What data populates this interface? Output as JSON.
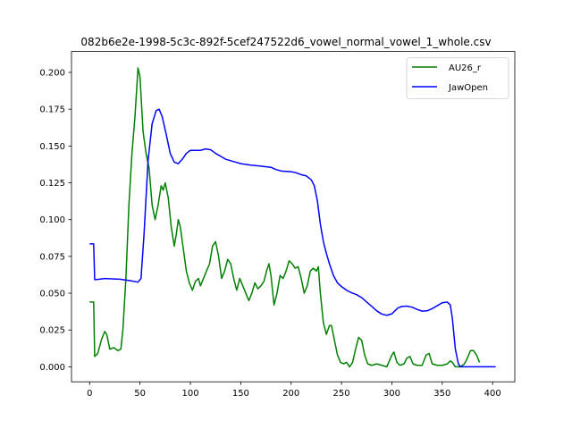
{
  "chart_data": {
    "type": "line",
    "title": "082b6e2e-1998-5c3c-892f-5cef247522d6_vowel_normal_vowel_1_whole.csv",
    "xlabel": "",
    "ylabel": "",
    "xlim": [
      -18,
      422
    ],
    "ylim": [
      -0.0102,
      0.2142
    ],
    "xticks": [
      0,
      50,
      100,
      150,
      200,
      250,
      300,
      350,
      400
    ],
    "yticks": [
      0.0,
      0.025,
      0.05,
      0.075,
      0.1,
      0.125,
      0.15,
      0.175,
      0.2
    ],
    "xtick_labels": [
      "0",
      "50",
      "100",
      "150",
      "200",
      "250",
      "300",
      "350",
      "400"
    ],
    "ytick_labels": [
      "0.000",
      "0.025",
      "0.050",
      "0.075",
      "0.100",
      "0.125",
      "0.150",
      "0.175",
      "0.200"
    ],
    "grid": false,
    "legend_position": "top-right",
    "series": [
      {
        "name": "AU26_r",
        "color": "#008000",
        "points": [
          [
            0,
            0.044
          ],
          [
            4,
            0.044
          ],
          [
            5,
            0.007
          ],
          [
            8,
            0.009
          ],
          [
            12,
            0.019
          ],
          [
            15,
            0.024
          ],
          [
            17,
            0.022
          ],
          [
            20,
            0.012
          ],
          [
            24,
            0.013
          ],
          [
            28,
            0.011
          ],
          [
            31,
            0.012
          ],
          [
            33,
            0.025
          ],
          [
            36,
            0.06
          ],
          [
            39,
            0.11
          ],
          [
            42,
            0.145
          ],
          [
            45,
            0.17
          ],
          [
            48,
            0.203
          ],
          [
            50,
            0.197
          ],
          [
            53,
            0.16
          ],
          [
            56,
            0.145
          ],
          [
            59,
            0.135
          ],
          [
            62,
            0.11
          ],
          [
            65,
            0.1
          ],
          [
            68,
            0.11
          ],
          [
            71,
            0.123
          ],
          [
            73,
            0.12
          ],
          [
            75,
            0.125
          ],
          [
            78,
            0.115
          ],
          [
            81,
            0.095
          ],
          [
            84,
            0.082
          ],
          [
            86,
            0.09
          ],
          [
            88,
            0.1
          ],
          [
            90,
            0.095
          ],
          [
            93,
            0.08
          ],
          [
            96,
            0.065
          ],
          [
            99,
            0.057
          ],
          [
            102,
            0.052
          ],
          [
            105,
            0.058
          ],
          [
            108,
            0.06
          ],
          [
            110,
            0.055
          ],
          [
            113,
            0.06
          ],
          [
            116,
            0.065
          ],
          [
            119,
            0.07
          ],
          [
            122,
            0.082
          ],
          [
            125,
            0.085
          ],
          [
            128,
            0.075
          ],
          [
            131,
            0.06
          ],
          [
            134,
            0.065
          ],
          [
            137,
            0.073
          ],
          [
            140,
            0.07
          ],
          [
            143,
            0.06
          ],
          [
            146,
            0.052
          ],
          [
            149,
            0.06
          ],
          [
            152,
            0.055
          ],
          [
            155,
            0.05
          ],
          [
            158,
            0.045
          ],
          [
            161,
            0.05
          ],
          [
            164,
            0.057
          ],
          [
            167,
            0.053
          ],
          [
            170,
            0.055
          ],
          [
            173,
            0.058
          ],
          [
            176,
            0.066
          ],
          [
            178,
            0.07
          ],
          [
            180,
            0.062
          ],
          [
            183,
            0.042
          ],
          [
            186,
            0.05
          ],
          [
            189,
            0.062
          ],
          [
            192,
            0.06
          ],
          [
            195,
            0.065
          ],
          [
            198,
            0.072
          ],
          [
            201,
            0.07
          ],
          [
            204,
            0.067
          ],
          [
            207,
            0.068
          ],
          [
            210,
            0.06
          ],
          [
            213,
            0.05
          ],
          [
            216,
            0.055
          ],
          [
            219,
            0.065
          ],
          [
            222,
            0.067
          ],
          [
            225,
            0.065
          ],
          [
            227,
            0.068
          ],
          [
            229,
            0.05
          ],
          [
            232,
            0.03
          ],
          [
            235,
            0.022
          ],
          [
            238,
            0.028
          ],
          [
            240,
            0.028
          ],
          [
            243,
            0.018
          ],
          [
            246,
            0.008
          ],
          [
            249,
            0.003
          ],
          [
            252,
            0.002
          ],
          [
            255,
            0.003
          ],
          [
            258,
            0.0
          ],
          [
            261,
            0.003
          ],
          [
            264,
            0.012
          ],
          [
            267,
            0.02
          ],
          [
            270,
            0.018
          ],
          [
            273,
            0.008
          ],
          [
            276,
            0.002
          ],
          [
            280,
            0.001
          ],
          [
            285,
            0.002
          ],
          [
            290,
            0.001
          ],
          [
            295,
            0.0
          ],
          [
            300,
            0.008
          ],
          [
            302,
            0.01
          ],
          [
            305,
            0.003
          ],
          [
            308,
            0.001
          ],
          [
            312,
            0.002
          ],
          [
            315,
            0.006
          ],
          [
            318,
            0.007
          ],
          [
            321,
            0.002
          ],
          [
            325,
            0.001
          ],
          [
            330,
            0.001
          ],
          [
            334,
            0.008
          ],
          [
            337,
            0.009
          ],
          [
            340,
            0.002
          ],
          [
            345,
            0.001
          ],
          [
            350,
            0.001
          ],
          [
            355,
            0.002
          ],
          [
            358,
            0.004
          ],
          [
            360,
            0.003
          ],
          [
            363,
            0.0
          ],
          [
            368,
            0.0
          ],
          [
            372,
            0.002
          ],
          [
            375,
            0.006
          ],
          [
            378,
            0.011
          ],
          [
            381,
            0.011
          ],
          [
            384,
            0.008
          ],
          [
            387,
            0.003
          ]
        ]
      },
      {
        "name": "JawOpen",
        "color": "#0000ff",
        "points": [
          [
            0,
            0.0835
          ],
          [
            4,
            0.0835
          ],
          [
            5,
            0.0592
          ],
          [
            10,
            0.0595
          ],
          [
            15,
            0.06
          ],
          [
            20,
            0.0598
          ],
          [
            30,
            0.0595
          ],
          [
            40,
            0.0585
          ],
          [
            48,
            0.0575
          ],
          [
            51,
            0.06
          ],
          [
            54,
            0.09
          ],
          [
            58,
            0.14
          ],
          [
            62,
            0.165
          ],
          [
            66,
            0.174
          ],
          [
            69,
            0.175
          ],
          [
            72,
            0.17
          ],
          [
            76,
            0.158
          ],
          [
            80,
            0.145
          ],
          [
            84,
            0.139
          ],
          [
            88,
            0.138
          ],
          [
            92,
            0.141
          ],
          [
            96,
            0.145
          ],
          [
            100,
            0.147
          ],
          [
            105,
            0.147
          ],
          [
            110,
            0.147
          ],
          [
            115,
            0.148
          ],
          [
            120,
            0.1475
          ],
          [
            125,
            0.145
          ],
          [
            130,
            0.143
          ],
          [
            135,
            0.141
          ],
          [
            140,
            0.14
          ],
          [
            145,
            0.139
          ],
          [
            150,
            0.138
          ],
          [
            160,
            0.137
          ],
          [
            170,
            0.1363
          ],
          [
            180,
            0.1355
          ],
          [
            185,
            0.134
          ],
          [
            190,
            0.133
          ],
          [
            200,
            0.1325
          ],
          [
            205,
            0.1318
          ],
          [
            210,
            0.1305
          ],
          [
            215,
            0.1297
          ],
          [
            220,
            0.127
          ],
          [
            223,
            0.123
          ],
          [
            226,
            0.113
          ],
          [
            229,
            0.097
          ],
          [
            232,
            0.085
          ],
          [
            235,
            0.077
          ],
          [
            238,
            0.07
          ],
          [
            242,
            0.062
          ],
          [
            246,
            0.057
          ],
          [
            250,
            0.0545
          ],
          [
            255,
            0.052
          ],
          [
            260,
            0.0503
          ],
          [
            265,
            0.049
          ],
          [
            270,
            0.047
          ],
          [
            275,
            0.044
          ],
          [
            280,
            0.041
          ],
          [
            285,
            0.038
          ],
          [
            290,
            0.0358
          ],
          [
            295,
            0.035
          ],
          [
            300,
            0.036
          ],
          [
            303,
            0.038
          ],
          [
            306,
            0.04
          ],
          [
            310,
            0.041
          ],
          [
            315,
            0.0412
          ],
          [
            320,
            0.0405
          ],
          [
            325,
            0.039
          ],
          [
            330,
            0.0378
          ],
          [
            335,
            0.038
          ],
          [
            340,
            0.0395
          ],
          [
            345,
            0.0415
          ],
          [
            350,
            0.0435
          ],
          [
            355,
            0.044
          ],
          [
            358,
            0.042
          ],
          [
            360,
            0.033
          ],
          [
            363,
            0.012
          ],
          [
            366,
            0.002
          ],
          [
            368,
            0.0
          ],
          [
            380,
            0.0
          ],
          [
            390,
            0.0
          ],
          [
            403,
            0.0
          ]
        ]
      }
    ]
  }
}
